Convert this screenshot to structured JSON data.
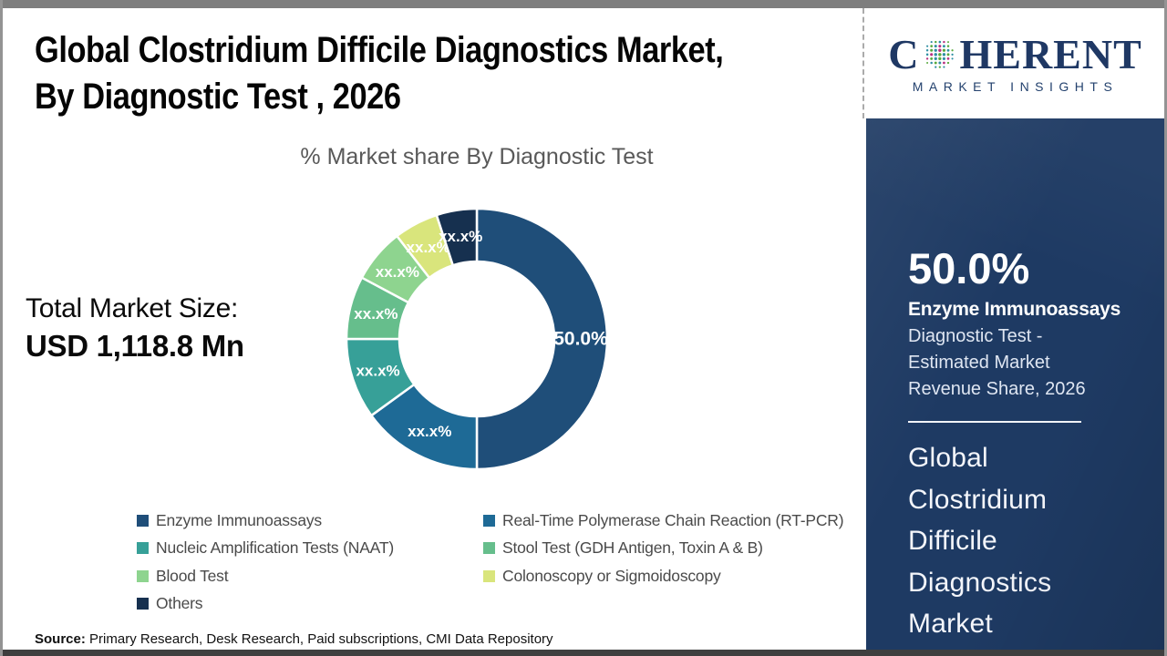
{
  "header": {
    "title_line1": "Global Clostridium Difficile Diagnostics Market,",
    "title_line2": "By Diagnostic Test , 2026"
  },
  "logo": {
    "word_start": "C",
    "word_end": "HERENT",
    "subtitle": "MARKET INSIGHTS",
    "brand_color": "#1F3864",
    "globe_colors": [
      "#2E8FA3",
      "#57A93C",
      "#B83280"
    ]
  },
  "chart_data": {
    "type": "pie",
    "donut": true,
    "title": "% Market share By Diagnostic Test",
    "legend_position": "bottom",
    "segments": [
      {
        "label": "Enzyme Immunoassays",
        "value_display": "50.0%",
        "share_pct": 50.0,
        "color": "#1F4E79"
      },
      {
        "label": "Real-Time Polymerase Chain Reaction (RT-PCR)",
        "value_display": "xx.x%",
        "share_pct": 15.0,
        "color": "#1E6A96"
      },
      {
        "label": "Nucleic Amplification Tests (NAAT)",
        "value_display": "xx.x%",
        "share_pct": 10.0,
        "color": "#37A098"
      },
      {
        "label": "Stool Test (GDH Antigen, Toxin A & B)",
        "value_display": "xx.x%",
        "share_pct": 7.8,
        "color": "#66BE8C"
      },
      {
        "label": "Blood Test",
        "value_display": "xx.x%",
        "share_pct": 6.7,
        "color": "#8ED48F"
      },
      {
        "label": "Colonoscopy or Sigmoidoscopy",
        "value_display": "xx.x%",
        "share_pct": 5.5,
        "color": "#D9E57C"
      },
      {
        "label": "Others",
        "value_display": "xx.x%",
        "share_pct": 5.0,
        "color": "#16304F"
      }
    ]
  },
  "total_market": {
    "label": "Total Market Size:",
    "value": "USD 1,118.8 Mn"
  },
  "sidebar": {
    "bg_color": "#1E3A63",
    "highlight_value": "50.0%",
    "highlight_label": "Enzyme Immunoassays",
    "desc_lines": [
      "Diagnostic Test -",
      "Estimated Market",
      "Revenue Share, 2026"
    ],
    "market_name_lines": [
      "Global",
      "Clostridium",
      "Difficile",
      "Diagnostics",
      "Market"
    ]
  },
  "source": {
    "label": "Source:",
    "text": " Primary Research, Desk Research, Paid subscriptions, CMI Data Repository"
  }
}
